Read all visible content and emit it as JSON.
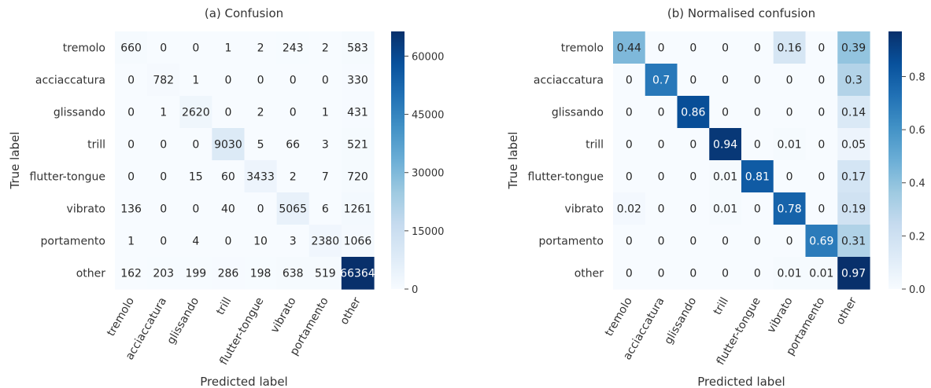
{
  "chart_data": [
    {
      "type": "heatmap",
      "title": "(a) Confusion",
      "xlabel": "Predicted label",
      "ylabel": "True label",
      "categories": [
        "tremolo",
        "acciaccatura",
        "glissando",
        "trill",
        "flutter-tongue",
        "vibrato",
        "portamento",
        "other"
      ],
      "matrix": [
        [
          660,
          0,
          0,
          1,
          2,
          243,
          2,
          583
        ],
        [
          0,
          782,
          1,
          0,
          0,
          0,
          0,
          330
        ],
        [
          0,
          1,
          2620,
          0,
          2,
          0,
          1,
          431
        ],
        [
          0,
          0,
          0,
          9030,
          5,
          66,
          3,
          521
        ],
        [
          0,
          0,
          15,
          60,
          3433,
          2,
          7,
          720
        ],
        [
          136,
          0,
          0,
          40,
          0,
          5065,
          6,
          1261
        ],
        [
          1,
          0,
          4,
          0,
          10,
          3,
          2380,
          1066
        ],
        [
          162,
          203,
          199,
          286,
          198,
          638,
          519,
          66364
        ]
      ],
      "labels": [
        [
          "660",
          "0",
          "0",
          "1",
          "2",
          "243",
          "2",
          "583"
        ],
        [
          "0",
          "782",
          "1",
          "0",
          "0",
          "0",
          "0",
          "330"
        ],
        [
          "0",
          "1",
          "2620",
          "0",
          "2",
          "0",
          "1",
          "431"
        ],
        [
          "0",
          "0",
          "0",
          "9030",
          "5",
          "66",
          "3",
          "521"
        ],
        [
          "0",
          "0",
          "15",
          "60",
          "3433",
          "2",
          "7",
          "720"
        ],
        [
          "136",
          "0",
          "0",
          "40",
          "0",
          "5065",
          "6",
          "1261"
        ],
        [
          "1",
          "0",
          "4",
          "0",
          "10",
          "3",
          "2380",
          "1066"
        ],
        [
          "162",
          "203",
          "199",
          "286",
          "198",
          "638",
          "519",
          "66364"
        ]
      ],
      "colorbar": {
        "range": [
          0,
          66364
        ],
        "ticks": [
          0,
          15000,
          30000,
          45000,
          60000
        ],
        "tick_labels": [
          "0",
          "15000",
          "30000",
          "45000",
          "60000"
        ]
      },
      "colormap": "Blues"
    },
    {
      "type": "heatmap",
      "title": "(b) Normalised confusion",
      "xlabel": "Predicted label",
      "ylabel": "True label",
      "categories": [
        "tremolo",
        "acciaccatura",
        "glissando",
        "trill",
        "flutter-tongue",
        "vibrato",
        "portamento",
        "other"
      ],
      "matrix": [
        [
          0.44,
          0,
          0,
          0,
          0,
          0.16,
          0,
          0.39
        ],
        [
          0,
          0.7,
          0,
          0,
          0,
          0,
          0,
          0.3
        ],
        [
          0,
          0,
          0.86,
          0,
          0,
          0,
          0,
          0.14
        ],
        [
          0,
          0,
          0,
          0.94,
          0,
          0.01,
          0,
          0.05
        ],
        [
          0,
          0,
          0,
          0.01,
          0.81,
          0,
          0,
          0.17
        ],
        [
          0.02,
          0,
          0,
          0.01,
          0,
          0.78,
          0,
          0.19
        ],
        [
          0,
          0,
          0,
          0,
          0,
          0,
          0.69,
          0.31
        ],
        [
          0,
          0,
          0,
          0,
          0,
          0.01,
          0.01,
          0.97
        ]
      ],
      "labels": [
        [
          "0.44",
          "0",
          "0",
          "0",
          "0",
          "0.16",
          "0",
          "0.39"
        ],
        [
          "0",
          "0.7",
          "0",
          "0",
          "0",
          "0",
          "0",
          "0.3"
        ],
        [
          "0",
          "0",
          "0.86",
          "0",
          "0",
          "0",
          "0",
          "0.14"
        ],
        [
          "0",
          "0",
          "0",
          "0.94",
          "0",
          "0.01",
          "0",
          "0.05"
        ],
        [
          "0",
          "0",
          "0",
          "0.01",
          "0.81",
          "0",
          "0",
          "0.17"
        ],
        [
          "0.02",
          "0",
          "0",
          "0.01",
          "0",
          "0.78",
          "0",
          "0.19"
        ],
        [
          "0",
          "0",
          "0",
          "0",
          "0",
          "0",
          "0.69",
          "0.31"
        ],
        [
          "0",
          "0",
          "0",
          "0",
          "0",
          "0.01",
          "0.01",
          "0.97"
        ]
      ],
      "colorbar": {
        "range": [
          0,
          0.97
        ],
        "ticks": [
          0.0,
          0.2,
          0.4,
          0.6,
          0.8
        ],
        "tick_labels": [
          "0.0",
          "0.2",
          "0.4",
          "0.6",
          "0.8"
        ]
      },
      "colormap": "Blues"
    }
  ]
}
